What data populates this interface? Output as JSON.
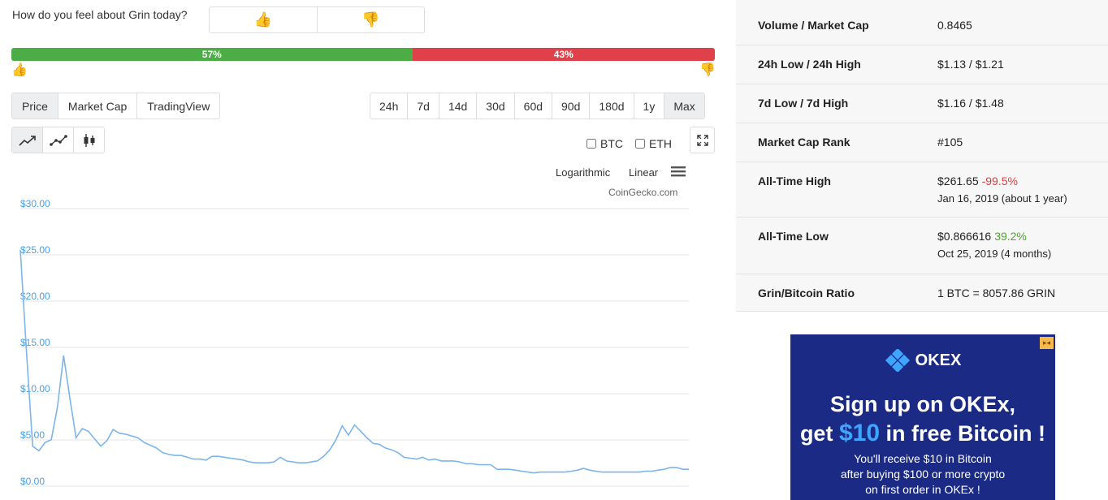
{
  "sentiment": {
    "question": "How do you feel about Grin today?",
    "up_emoji": "👍",
    "down_emoji": "👎",
    "positive_pct": "57%",
    "negative_pct": "43%",
    "positive_fraction": 0.57,
    "colors": {
      "positive": "#4cac45",
      "negative": "#e0404a"
    }
  },
  "tabs": [
    "Price",
    "Market Cap",
    "TradingView"
  ],
  "active_tab": "Price",
  "ranges": [
    "24h",
    "7d",
    "14d",
    "30d",
    "60d",
    "90d",
    "180d",
    "1y",
    "Max"
  ],
  "active_range": "Max",
  "chart_types": [
    "line-chart-icon",
    "line-markers-icon",
    "candlestick-icon"
  ],
  "compare": {
    "btc": "BTC",
    "eth": "ETH"
  },
  "scale": {
    "log": "Logarithmic",
    "linear": "Linear"
  },
  "credit": "CoinGecko.com",
  "chart_data": {
    "type": "line",
    "yticks": [
      "$30.00",
      "$25.00",
      "$20.00",
      "$15.00",
      "$10.00",
      "$5.00",
      "$0.00"
    ],
    "ylim": [
      0,
      30
    ],
    "color": "#7cb5ec",
    "series": [
      {
        "values": [
          25.0,
          14.0,
          3.8,
          3.3,
          4.2,
          4.5,
          8.0,
          13.6,
          9.0,
          4.7,
          5.7,
          5.4,
          4.6,
          3.8,
          4.4,
          5.6,
          5.2,
          5.1,
          4.9,
          4.7,
          4.2,
          3.9,
          3.6,
          3.1,
          2.9,
          2.8,
          2.8,
          2.6,
          2.4,
          2.4,
          2.3,
          2.7,
          2.7,
          2.6,
          2.5,
          2.4,
          2.3,
          2.1,
          2.0,
          2.0,
          2.0,
          2.1,
          2.6,
          2.2,
          2.1,
          2.0,
          2.0,
          2.1,
          2.2,
          2.7,
          3.4,
          4.5,
          6.0,
          5.0,
          6.1,
          5.4,
          4.7,
          4.1,
          4.0,
          3.6,
          3.4,
          3.1,
          2.6,
          2.5,
          2.4,
          2.6,
          2.3,
          2.4,
          2.2,
          2.2,
          2.2,
          2.1,
          1.9,
          1.9,
          1.8,
          1.8,
          1.8,
          1.3,
          1.3,
          1.3,
          1.2,
          1.1,
          1.0,
          0.9,
          1.0,
          1.0,
          1.0,
          1.0,
          1.0,
          1.1,
          1.2,
          1.4,
          1.2,
          1.1,
          1.0,
          1.0,
          1.0,
          1.0,
          1.0,
          1.0,
          1.0,
          1.1,
          1.1,
          1.2,
          1.3,
          1.5,
          1.5,
          1.3,
          1.3
        ]
      }
    ]
  },
  "stats": [
    {
      "label": "Volume / Market Cap",
      "value": "0.8465"
    },
    {
      "label": "24h Low / 24h High",
      "value": "$1.13 / $1.21"
    },
    {
      "label": "7d Low / 7d High",
      "value": "$1.16 / $1.48"
    },
    {
      "label": "Market Cap Rank",
      "value": "#105"
    },
    {
      "label": "All-Time High",
      "value": "$261.65",
      "change": "-99.5%",
      "sub": "Jan 16, 2019 (about 1 year)"
    },
    {
      "label": "All-Time Low",
      "value": "$0.866616",
      "change": "39.2%",
      "sub": "Oct 25, 2019 (4 months)"
    },
    {
      "label": "Grin/Bitcoin Ratio",
      "value": "1 BTC = 8057.86 GRIN"
    }
  ],
  "ad": {
    "brand": "OKEX",
    "line1": "Sign up on OKEx,",
    "line2_pre": "get ",
    "line2_accent": "$10",
    "line2_post": " in free Bitcoin !",
    "body1": "You'll receive $10 in Bitcoin",
    "body2": "after buying $100 or more crypto",
    "body3": "on first order in OKEx !",
    "colors": {
      "background": "#1a2a85",
      "accent": "#3ea6ff"
    }
  }
}
